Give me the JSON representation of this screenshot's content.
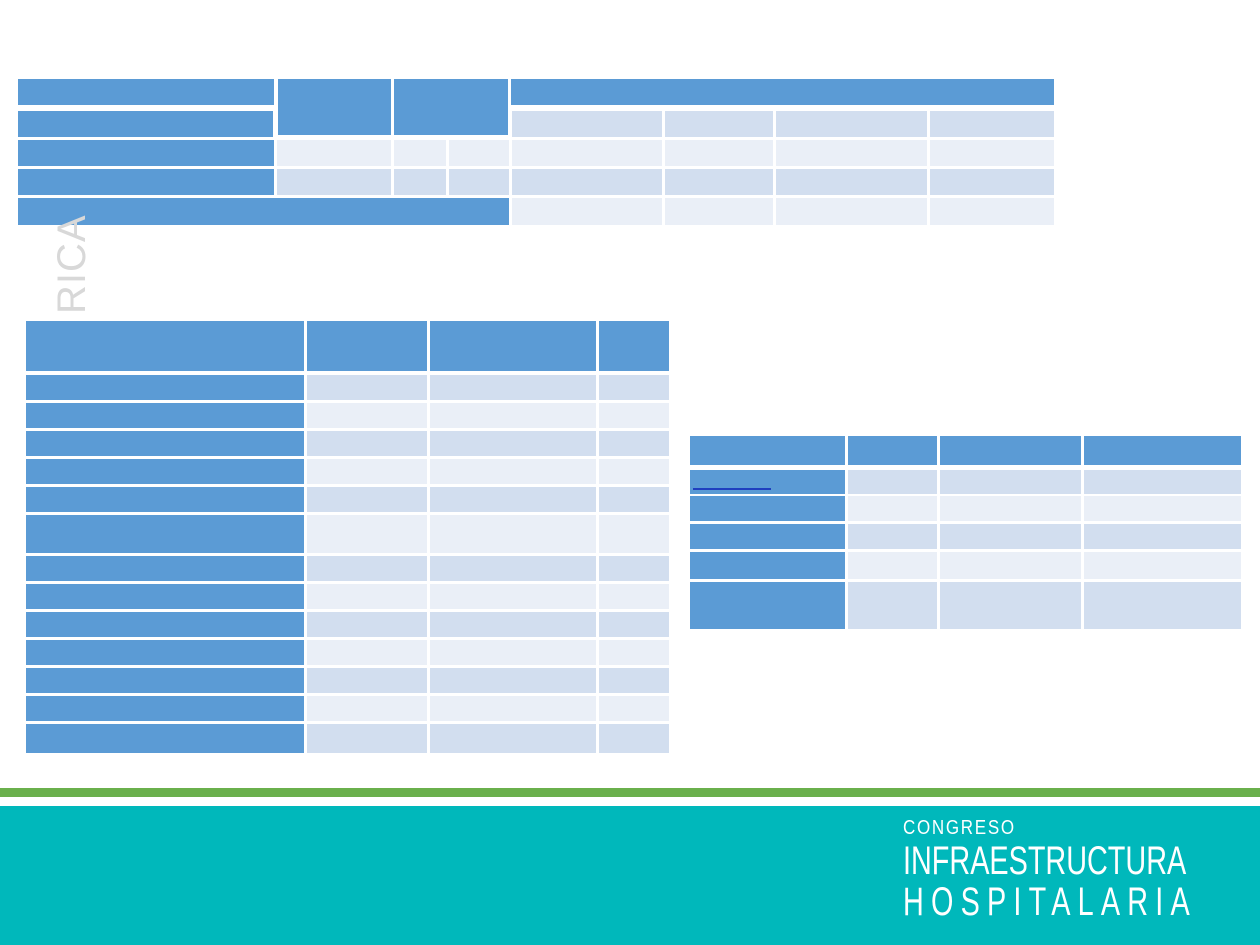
{
  "side_label": "RICA",
  "logo": {
    "line1": "CONGRESO",
    "line2": "INFRAESTRUCTURA",
    "line3": "HOSPITALARIA"
  },
  "colors": {
    "table_header": "#5b9bd5",
    "row_light": "#d2deef",
    "row_lighter": "#eaeff7",
    "footer": "#00b8bb",
    "green_band": "#6ab04c"
  }
}
